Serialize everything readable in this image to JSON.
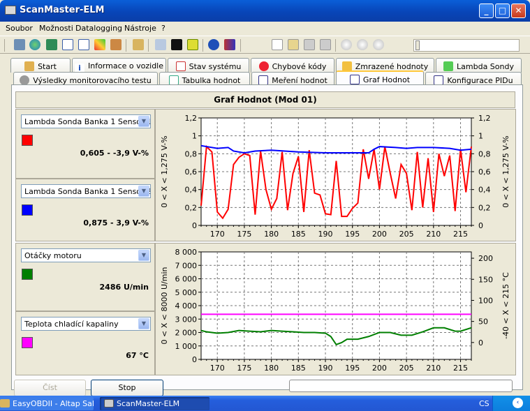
{
  "app": {
    "title": "ScanMaster-ELM"
  },
  "menu": [
    "Soubor",
    "Možnosti",
    "Datalogging",
    "Nástroje",
    "?"
  ],
  "tabs_top": [
    "Start",
    "Informace o vozidle",
    "Stav systému",
    "Chybové kódy",
    "Zmrazené hodnoty",
    "Lambda Sondy"
  ],
  "tabs_bottom": [
    "Výsledky monitorovacího testu",
    "Tabulka hodnot",
    "Meření hodnot",
    "Graf Hodnot",
    "Konfigurace PIDu"
  ],
  "graph": {
    "title": "Graf Hodnot (Mod 01)"
  },
  "sensors": [
    {
      "name": "Lambda Sonda Banka 1 Sensor 1",
      "color": "#ff0000",
      "value": "0,605 - -3,9 V-%"
    },
    {
      "name": "Lambda Sonda Banka 1 Sensor 2",
      "color": "#0000ff",
      "value": "0,875 - 3,9 V-%"
    },
    {
      "name": "Otáčky motoru",
      "color": "#007f00",
      "value": "2486 U/min"
    },
    {
      "name": "Teplota chladící kapaliny",
      "color": "#ff00ff",
      "value": "67 °C"
    }
  ],
  "buttons": {
    "read": "Číst",
    "stop": "Stop"
  },
  "taskbar": {
    "items": [
      "EasyOBDII - Altap Sal...",
      "ScanMaster-ELM"
    ],
    "lang": "CS"
  },
  "chart_data": [
    {
      "type": "line",
      "x_ticks": [
        "170",
        "175",
        "180",
        "185",
        "190",
        "195",
        "200",
        "205",
        "210",
        "215"
      ],
      "xlim": [
        167,
        217
      ],
      "y_left_ticks": [
        "0",
        "0,2",
        "0,4",
        "0,6",
        "0,8",
        "1",
        "1,2"
      ],
      "y_right_ticks": [
        "0",
        "0,2",
        "0,4",
        "0,6",
        "0,8",
        "1",
        "1,2"
      ],
      "ylim": [
        0,
        1.2
      ],
      "left_axis_label": "0  < X <  1,275  V-%",
      "right_axis_label": "0  < X <  1,275  V-%",
      "series": [
        {
          "name": "Lambda Sonda Banka 1 Sensor 1",
          "color": "#ff0000",
          "x": [
            167,
            168,
            169,
            170,
            171,
            172,
            173,
            174,
            175,
            176,
            177,
            178,
            179,
            180,
            181,
            182,
            183,
            184,
            185,
            186,
            187,
            188,
            189,
            190,
            191,
            192,
            193,
            194,
            195,
            196,
            197,
            198,
            199,
            200,
            201,
            202,
            203,
            204,
            205,
            206,
            207,
            208,
            209,
            210,
            211,
            212,
            213,
            214,
            215,
            216,
            217
          ],
          "values": [
            0.22,
            0.88,
            0.82,
            0.15,
            0.08,
            0.18,
            0.68,
            0.76,
            0.8,
            0.78,
            0.12,
            0.83,
            0.4,
            0.18,
            0.3,
            0.82,
            0.17,
            0.58,
            0.77,
            0.15,
            0.84,
            0.36,
            0.34,
            0.13,
            0.12,
            0.72,
            0.1,
            0.1,
            0.19,
            0.25,
            0.85,
            0.52,
            0.85,
            0.4,
            0.88,
            0.58,
            0.3,
            0.68,
            0.58,
            0.17,
            0.82,
            0.2,
            0.75,
            0.15,
            0.8,
            0.55,
            0.78,
            0.16,
            0.85,
            0.37,
            0.88
          ]
        },
        {
          "name": "Lambda Sonda Banka 1 Sensor 2",
          "color": "#0000ff",
          "x": [
            167,
            168,
            170,
            172,
            173,
            175,
            177,
            180,
            185,
            190,
            195,
            198,
            199,
            200,
            203,
            205,
            207,
            210,
            213,
            215,
            217
          ],
          "values": [
            0.89,
            0.88,
            0.86,
            0.87,
            0.83,
            0.81,
            0.83,
            0.84,
            0.82,
            0.81,
            0.81,
            0.81,
            0.85,
            0.88,
            0.87,
            0.86,
            0.87,
            0.87,
            0.86,
            0.84,
            0.85
          ]
        }
      ]
    },
    {
      "type": "line",
      "x_ticks": [
        "170",
        "175",
        "180",
        "185",
        "190",
        "195",
        "200",
        "205",
        "210",
        "215"
      ],
      "xlim": [
        167,
        217
      ],
      "y_left_ticks": [
        "0",
        "1 000",
        "2 000",
        "3 000",
        "4 000",
        "5 000",
        "6 000",
        "7 000",
        "8 000"
      ],
      "ylim": [
        0,
        8000
      ],
      "y_right_ticks": [
        "0",
        "50",
        "100",
        "150",
        "200"
      ],
      "y_right_lim": [
        -40,
        215
      ],
      "left_axis_label": "0  < X <  8000  U/min",
      "right_axis_label": "-40  < X <  215  °C",
      "series": [
        {
          "name": "Otáčky motoru",
          "color": "#007f00",
          "axis": "left",
          "x": [
            167,
            168,
            170,
            172,
            174,
            176,
            178,
            180,
            182,
            184,
            186,
            188,
            190,
            191,
            192,
            193,
            194,
            196,
            198,
            200,
            202,
            204,
            206,
            208,
            210,
            212,
            214,
            215,
            217
          ],
          "values": [
            2150,
            2050,
            1950,
            2000,
            2150,
            2100,
            2050,
            2150,
            2100,
            2050,
            2000,
            2000,
            1950,
            1700,
            1100,
            1250,
            1500,
            1500,
            1700,
            2000,
            2000,
            1800,
            1800,
            2050,
            2350,
            2350,
            2100,
            2100,
            2350
          ]
        },
        {
          "name": "Teplota chladící kapaliny",
          "color": "#ff00ff",
          "axis": "right",
          "x": [
            167,
            217
          ],
          "values": [
            67,
            67
          ]
        }
      ]
    }
  ]
}
